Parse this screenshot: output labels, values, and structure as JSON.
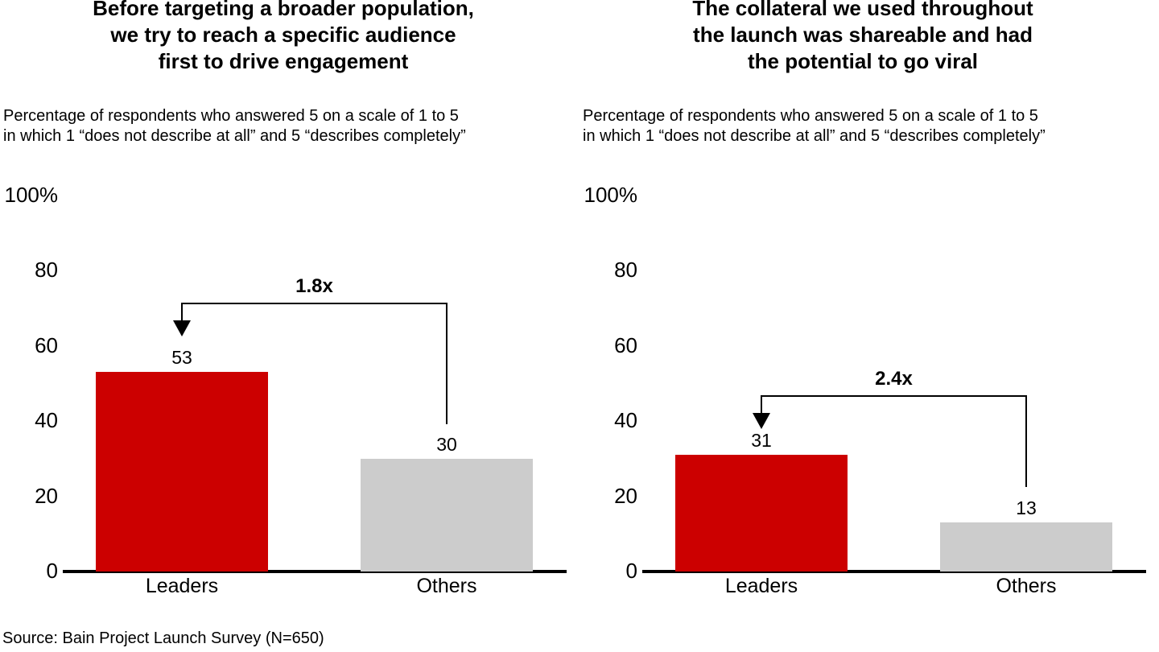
{
  "chart_data": [
    {
      "type": "bar",
      "title": "Before targeting a broader population,\nwe try to reach a specific audience\nfirst to drive engagement",
      "subtitle": "Percentage of respondents who answered 5 on a scale of 1 to 5\nin which 1 “does not describe at all” and 5 “describes completely”",
      "categories": [
        "Leaders",
        "Others"
      ],
      "values": [
        53,
        30
      ],
      "bar_colors": [
        "#CC0000",
        "#CCCCCC"
      ],
      "multiplier_label": "1.8x",
      "y_ticks": [
        "100%",
        "80",
        "60",
        "40",
        "20",
        "0"
      ],
      "y_tick_values": [
        100,
        80,
        60,
        40,
        20,
        0
      ],
      "ylim": [
        0,
        100
      ],
      "grid": false,
      "legend": "none"
    },
    {
      "type": "bar",
      "title": "The collateral we used throughout\nthe launch was shareable and had\nthe potential to go viral",
      "subtitle": "Percentage of respondents who answered 5 on a scale of 1 to 5\nin which 1 “does not describe at all” and 5 “describes completely”",
      "categories": [
        "Leaders",
        "Others"
      ],
      "values": [
        31,
        13
      ],
      "bar_colors": [
        "#CC0000",
        "#CCCCCC"
      ],
      "multiplier_label": "2.4x",
      "y_ticks": [
        "100%",
        "80",
        "60",
        "40",
        "20",
        "0"
      ],
      "y_tick_values": [
        100,
        80,
        60,
        40,
        20,
        0
      ],
      "ylim": [
        0,
        100
      ],
      "grid": false,
      "legend": "none"
    }
  ],
  "source": "Source: Bain Project Launch Survey (N=650)",
  "colors": {
    "leader_bar": "#CC0000",
    "other_bar": "#CCCCCC",
    "axis": "#000000",
    "text": "#000000",
    "background": "#FFFFFF"
  }
}
